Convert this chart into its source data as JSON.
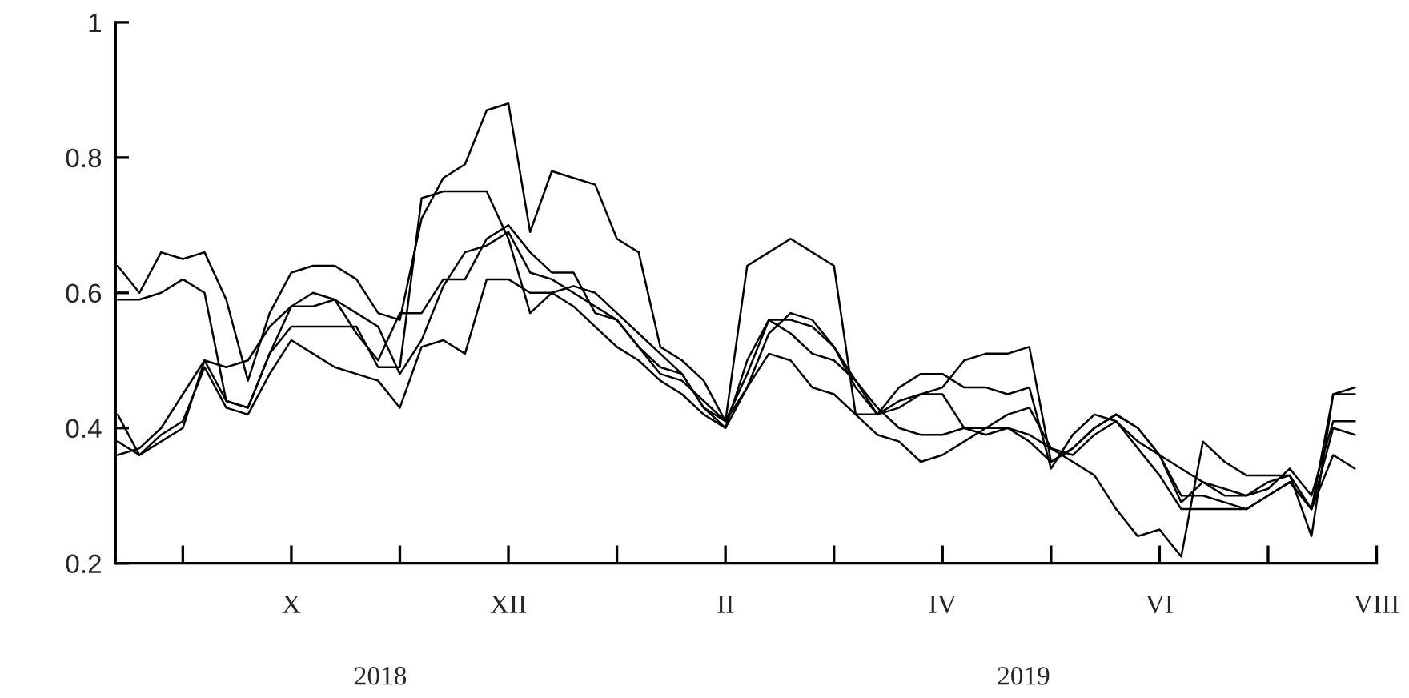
{
  "chart_data": {
    "type": "line",
    "categories": [
      null,
      null,
      null,
      null,
      null,
      null,
      null,
      null,
      "X",
      null,
      null,
      null,
      null,
      null,
      null,
      null,
      null,
      null,
      "XII",
      null,
      null,
      null,
      null,
      null,
      null,
      null,
      null,
      null,
      "II",
      null,
      null,
      null,
      null,
      null,
      null,
      null,
      null,
      null,
      "IV",
      null,
      null,
      null,
      null,
      null,
      null,
      null,
      null,
      null,
      "VI",
      null,
      null,
      null,
      null,
      null,
      null,
      null,
      null,
      null,
      "VIII"
    ],
    "series": [
      {
        "color": "#000000",
        "values": [
          0.64,
          0.6,
          0.66,
          0.65,
          0.66,
          0.59,
          0.47,
          0.57,
          0.63,
          0.64,
          0.64,
          0.62,
          0.57,
          0.56,
          0.71,
          0.77,
          0.79,
          0.87,
          0.88,
          0.69,
          0.78,
          0.77,
          0.76,
          0.68,
          0.66,
          0.52,
          0.5,
          0.47,
          0.41,
          0.64,
          0.66,
          0.68,
          0.66,
          0.64,
          0.42,
          0.42,
          0.43,
          0.45,
          0.46,
          0.5,
          0.51,
          0.51,
          0.52,
          0.35,
          0.37,
          0.4,
          0.42,
          0.4,
          0.36,
          0.34,
          0.32,
          0.3,
          0.3,
          0.32,
          0.33,
          0.28,
          0.45,
          0.46,
          null
        ]
      },
      {
        "color": "#000000",
        "values": [
          0.59,
          0.59,
          0.6,
          0.62,
          0.6,
          0.44,
          0.43,
          0.51,
          0.58,
          0.58,
          0.59,
          0.54,
          0.5,
          0.57,
          0.57,
          0.62,
          0.62,
          0.68,
          0.7,
          0.66,
          0.63,
          0.63,
          0.57,
          0.56,
          0.52,
          0.48,
          0.47,
          0.44,
          0.41,
          0.48,
          0.56,
          0.56,
          0.55,
          0.52,
          0.47,
          0.42,
          0.44,
          0.45,
          0.45,
          0.4,
          0.39,
          0.4,
          0.38,
          0.35,
          0.37,
          0.4,
          0.42,
          0.4,
          0.36,
          0.3,
          0.3,
          0.29,
          0.28,
          0.3,
          0.32,
          0.28,
          0.4,
          0.39,
          null
        ]
      },
      {
        "color": "#000000",
        "values": [
          0.36,
          0.37,
          0.4,
          0.45,
          0.5,
          0.49,
          0.5,
          0.55,
          0.58,
          0.6,
          0.59,
          0.57,
          0.55,
          0.48,
          0.53,
          0.61,
          0.66,
          0.67,
          0.69,
          0.63,
          0.62,
          0.6,
          0.58,
          0.56,
          0.52,
          0.49,
          0.48,
          0.43,
          0.4,
          0.5,
          0.56,
          0.54,
          0.51,
          0.5,
          0.47,
          0.43,
          0.4,
          0.39,
          0.39,
          0.4,
          0.4,
          0.42,
          0.43,
          0.37,
          0.36,
          0.39,
          0.41,
          0.37,
          0.33,
          0.28,
          0.28,
          0.28,
          0.28,
          0.3,
          0.32,
          0.28,
          0.36,
          0.34,
          null
        ]
      },
      {
        "color": "#000000",
        "values": [
          0.38,
          0.36,
          0.39,
          0.41,
          0.49,
          0.43,
          0.42,
          0.48,
          0.53,
          0.51,
          0.49,
          0.48,
          0.47,
          0.43,
          0.52,
          0.53,
          0.51,
          0.62,
          0.62,
          0.6,
          0.6,
          0.58,
          0.55,
          0.52,
          0.5,
          0.47,
          0.45,
          0.42,
          0.4,
          0.46,
          0.51,
          0.5,
          0.46,
          0.45,
          0.42,
          0.39,
          0.38,
          0.35,
          0.36,
          0.38,
          0.4,
          0.4,
          0.39,
          0.37,
          0.35,
          0.33,
          0.28,
          0.24,
          0.25,
          0.21,
          0.38,
          0.35,
          0.33,
          0.33,
          0.33,
          0.24,
          0.45,
          0.45,
          null
        ]
      },
      {
        "color": "#000000",
        "values": [
          0.42,
          0.36,
          0.38,
          0.4,
          0.5,
          0.44,
          0.43,
          0.51,
          0.55,
          0.55,
          0.55,
          0.55,
          0.49,
          0.49,
          0.74,
          0.75,
          0.75,
          0.75,
          0.68,
          0.57,
          0.6,
          0.61,
          0.6,
          0.57,
          0.54,
          0.51,
          0.48,
          0.43,
          0.41,
          0.46,
          0.54,
          0.57,
          0.56,
          0.52,
          0.46,
          0.42,
          0.46,
          0.48,
          0.48,
          0.46,
          0.46,
          0.45,
          0.46,
          0.34,
          0.39,
          0.42,
          0.41,
          0.38,
          0.36,
          0.29,
          0.32,
          0.31,
          0.3,
          0.31,
          0.34,
          0.3,
          0.41,
          0.41,
          null
        ]
      }
    ],
    "ylim": [
      0.2,
      1
    ],
    "yticks": [
      0.2,
      0.4,
      0.6,
      0.8,
      1
    ],
    "annotations": [
      "2018",
      "2019"
    ]
  }
}
